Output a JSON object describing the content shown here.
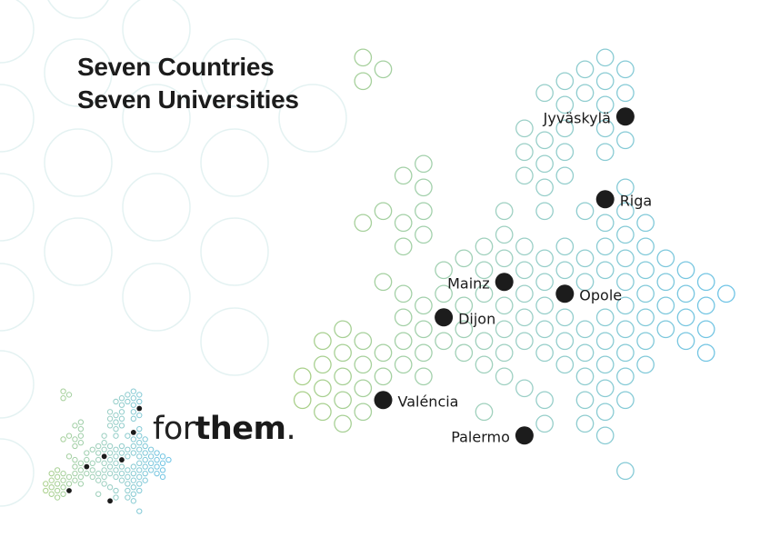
{
  "title": {
    "line1": "Seven Countries",
    "line2": "Seven Universities"
  },
  "cities": [
    {
      "name": "Jyväskylä"
    },
    {
      "name": "Riga"
    },
    {
      "name": "Mainz"
    },
    {
      "name": "Opole"
    },
    {
      "name": "Dijon"
    },
    {
      "name": "Valéncia"
    },
    {
      "name": "Palermo"
    }
  ],
  "logo": {
    "part1": "for",
    "part2": "them",
    "part3": "."
  },
  "colors": {
    "west": "#a9d08a",
    "center": "#9dd0c4",
    "east": "#6fc4e6",
    "dot": "#1c1c1c",
    "background_circles": "#e4f2f2"
  }
}
